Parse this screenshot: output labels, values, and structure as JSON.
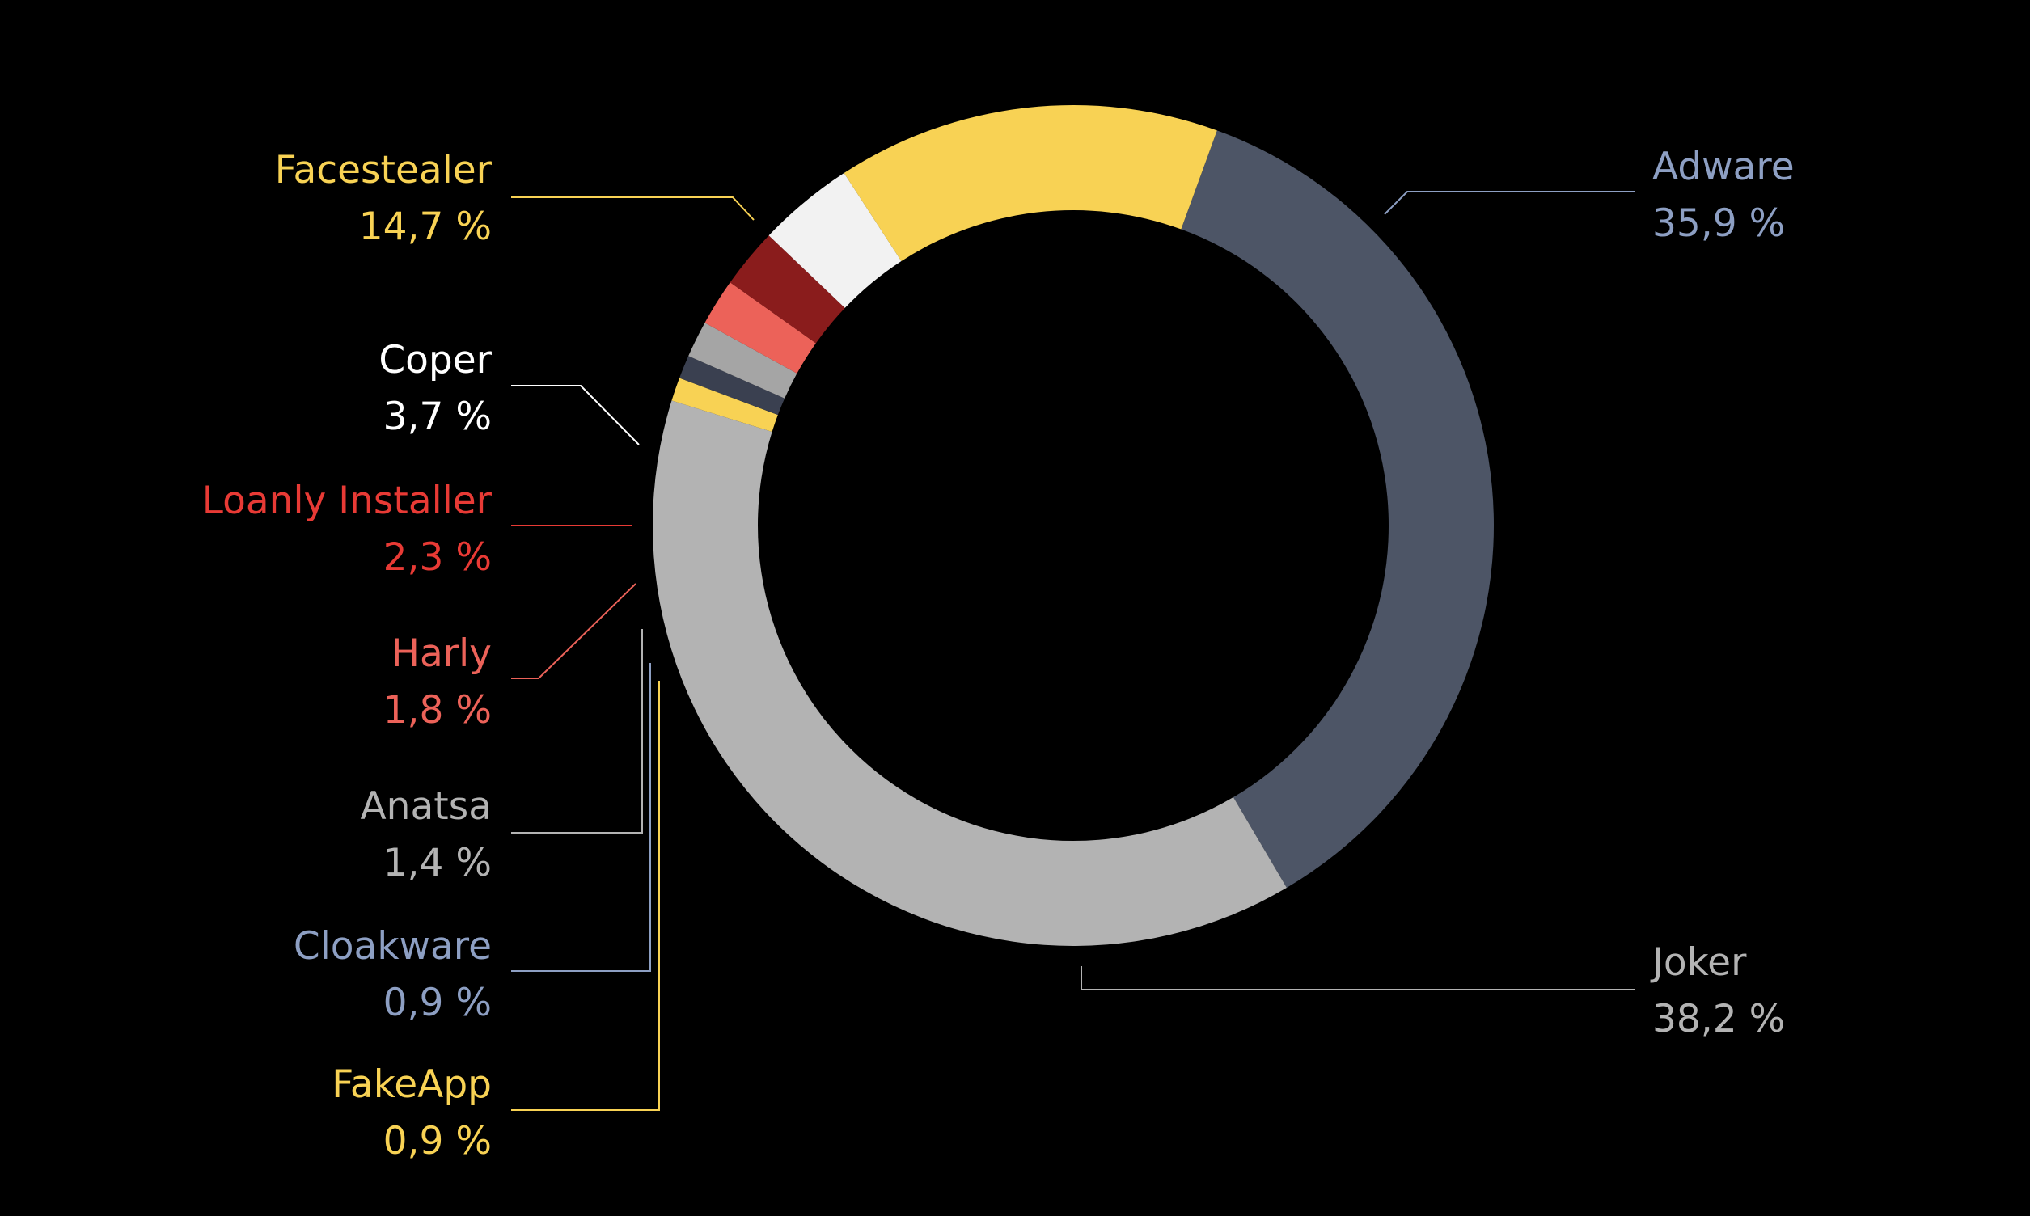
{
  "chart_data": {
    "type": "pie",
    "style": "donut",
    "title": "",
    "unit": "%",
    "categories": [
      "Adware",
      "Joker",
      "FakeApp",
      "Cloakware",
      "Anatsa",
      "Harly",
      "Loanly Installer",
      "Coper",
      "Facestealer"
    ],
    "values": [
      35.9,
      38.2,
      0.9,
      0.9,
      1.4,
      1.8,
      2.3,
      3.7,
      14.7
    ],
    "value_labels": [
      "35,9 %",
      "38,2 %",
      "0,9 %",
      "0,9 %",
      "1,4 %",
      "1,8 %",
      "2,3 %",
      "3,7 %",
      "14,7 %"
    ],
    "colors": [
      "#4d5566",
      "#b3b3b3",
      "#f8d254",
      "#3a4050",
      "#a5a5a5",
      "#ec6259",
      "#8a1c1c",
      "#f2f2f2",
      "#f8d254"
    ],
    "label_colors": [
      "#8d9fc3",
      "#b3b3b3",
      "#f8d254",
      "#8d9fc3",
      "#b3b3b3",
      "#ec6259",
      "#e83a35",
      "#ffffff",
      "#f8d254"
    ],
    "start_angle_deg": 20,
    "direction": "clockwise"
  }
}
